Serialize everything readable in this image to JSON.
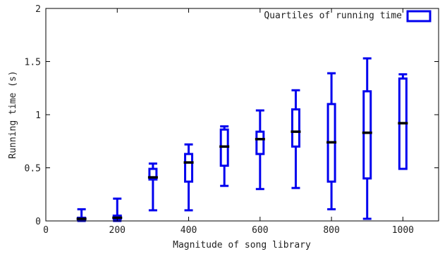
{
  "chart_data": {
    "type": "boxplot",
    "title": "",
    "xlabel": "Magnitude of song library",
    "ylabel": "Running time (s)",
    "xlim": [
      0,
      1100
    ],
    "ylim": [
      0,
      2
    ],
    "xticks": [
      0,
      200,
      400,
      600,
      800,
      1000
    ],
    "yticks": [
      0,
      0.5,
      1,
      1.5,
      2
    ],
    "ytick_labels": [
      "0",
      "0.5",
      "1",
      "1.5",
      "2"
    ],
    "grid": false,
    "legend": {
      "position": "top-right",
      "entries": [
        "Quartiles of running time"
      ]
    },
    "series": [
      {
        "name": "Quartiles of running time",
        "color": "#0000ee",
        "median_color": "#000000",
        "points": [
          {
            "x": 100,
            "min": 0.0,
            "q1": 0.01,
            "median": 0.02,
            "q3": 0.03,
            "max": 0.11
          },
          {
            "x": 200,
            "min": 0.0,
            "q1": 0.02,
            "median": 0.03,
            "q3": 0.05,
            "max": 0.21
          },
          {
            "x": 300,
            "min": 0.1,
            "q1": 0.39,
            "median": 0.41,
            "q3": 0.49,
            "max": 0.54
          },
          {
            "x": 400,
            "min": 0.1,
            "q1": 0.37,
            "median": 0.55,
            "q3": 0.63,
            "max": 0.72
          },
          {
            "x": 500,
            "min": 0.33,
            "q1": 0.52,
            "median": 0.7,
            "q3": 0.86,
            "max": 0.89
          },
          {
            "x": 600,
            "min": 0.3,
            "q1": 0.63,
            "median": 0.77,
            "q3": 0.84,
            "max": 1.04
          },
          {
            "x": 700,
            "min": 0.31,
            "q1": 0.7,
            "median": 0.84,
            "q3": 1.05,
            "max": 1.23
          },
          {
            "x": 800,
            "min": 0.11,
            "q1": 0.37,
            "median": 0.74,
            "q3": 1.1,
            "max": 1.39
          },
          {
            "x": 900,
            "min": 0.02,
            "q1": 0.4,
            "median": 0.83,
            "q3": 1.22,
            "max": 1.53
          },
          {
            "x": 1000,
            "min": 0.49,
            "q1": 0.49,
            "median": 0.92,
            "q3": 1.34,
            "max": 1.38
          }
        ]
      }
    ]
  }
}
